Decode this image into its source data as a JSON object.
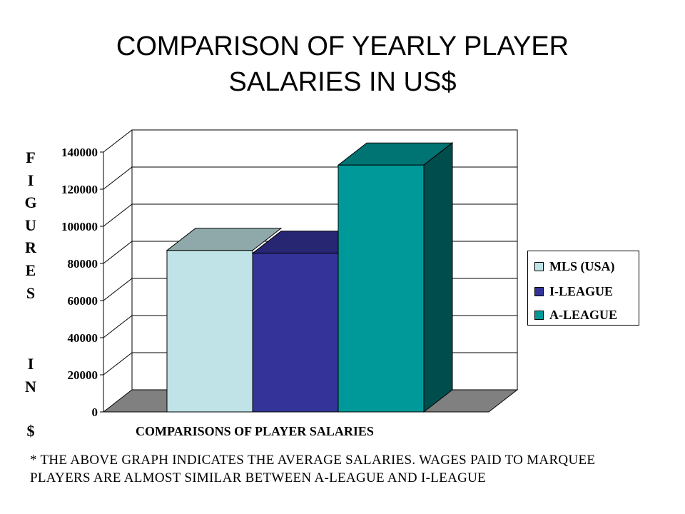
{
  "page": {
    "title_line1": "COMPARISON OF YEARLY PLAYER",
    "title_line2": "SALARIES IN US$",
    "footnote": "* THE ABOVE GRAPH INDICATES THE AVERAGE SALARIES. WAGES PAID TO MARQUEE PLAYERS ARE ALMOST SIMILAR BETWEEN A-LEAGUE AND I-LEAGUE"
  },
  "chart_data": {
    "type": "bar",
    "title": "COMPARISON OF YEARLY PLAYER SALARIES IN US$",
    "xlabel": "COMPARISONS OF PLAYER SALARIES",
    "ylabel": "FIGURES IN $",
    "ylabel_parts": [
      "FIGURES",
      "IN",
      "$"
    ],
    "categories": [
      ""
    ],
    "ylim": [
      0,
      140000
    ],
    "yticks": [
      0,
      20000,
      40000,
      60000,
      80000,
      100000,
      120000,
      140000
    ],
    "grid": true,
    "three_d": true,
    "legend_position": "right",
    "series": [
      {
        "name": "MLS (USA)",
        "values": [
          87000
        ],
        "color": "#bfe3e6",
        "top_color": "#8fa9ab"
      },
      {
        "name": "I-LEAGUE",
        "values": [
          85500
        ],
        "color": "#333399",
        "top_color": "#262673"
      },
      {
        "name": "A-LEAGUE",
        "values": [
          133000
        ],
        "color": "#009999",
        "top_color": "#007373",
        "side_color": "#004d4d"
      }
    ],
    "wall_color": "#ffffff",
    "floor_color": "#808080"
  }
}
